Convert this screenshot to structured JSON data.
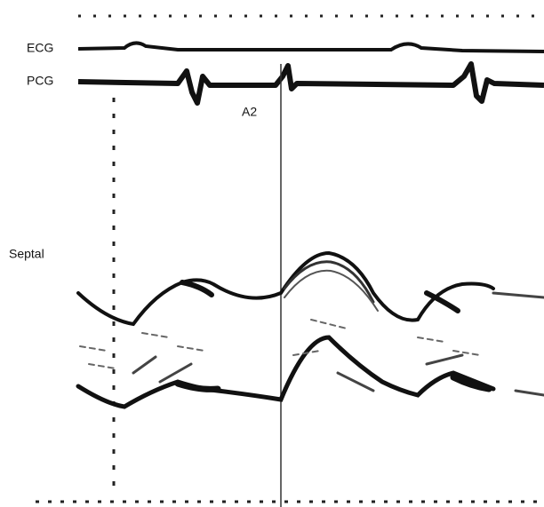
{
  "labels": {
    "ecg": "ECG",
    "pcg": "PCG",
    "marker": "A2",
    "region": "Septal"
  }
}
